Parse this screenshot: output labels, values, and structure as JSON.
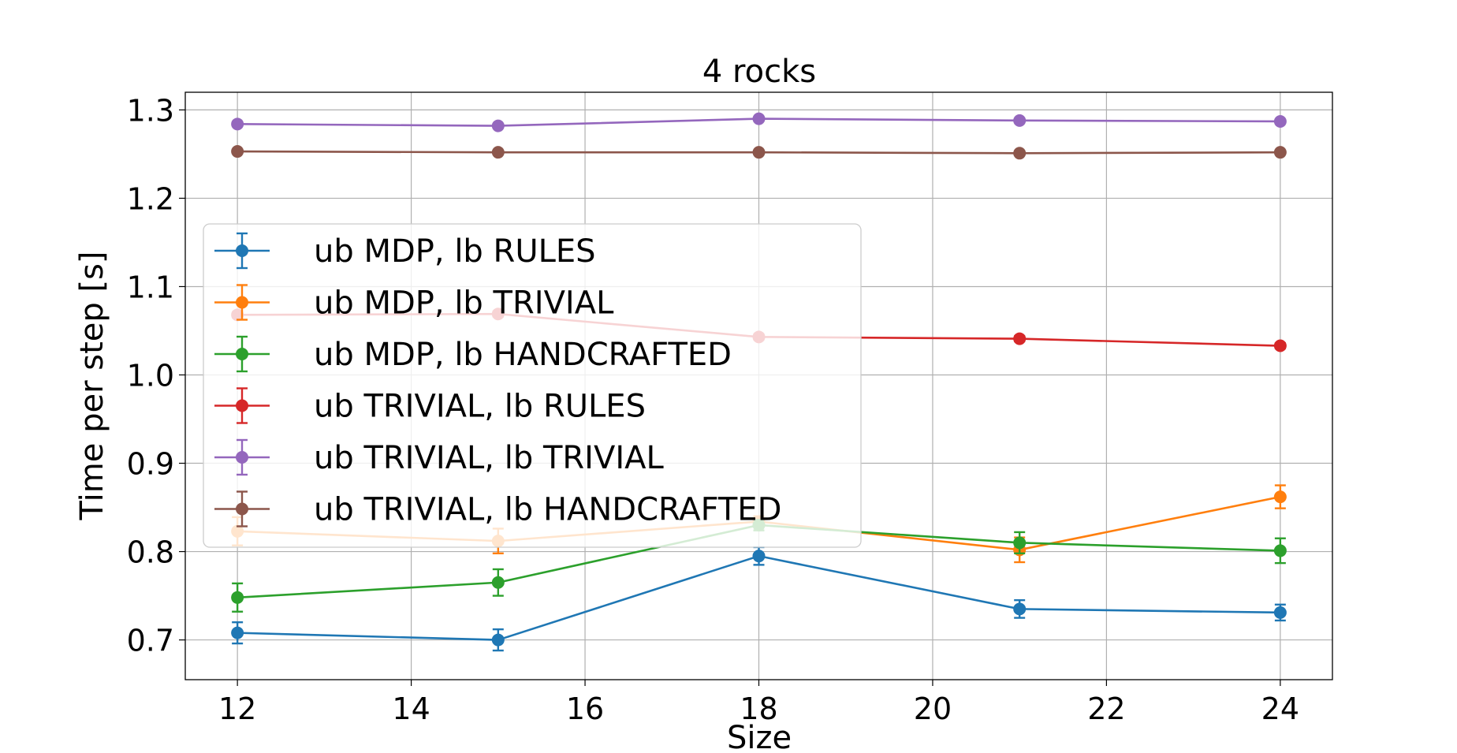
{
  "chart_data": {
    "type": "line",
    "title": "4 rocks",
    "xlabel": "Size",
    "ylabel": "Time per step [s]",
    "xlim": [
      11.4,
      24.6
    ],
    "ylim": [
      0.655,
      1.32
    ],
    "xticks": [
      12,
      14,
      16,
      18,
      20,
      22,
      24
    ],
    "yticks": [
      0.7,
      0.8,
      0.9,
      1.0,
      1.1,
      1.2,
      1.3
    ],
    "xtick_labels": [
      "12",
      "14",
      "16",
      "18",
      "20",
      "22",
      "24"
    ],
    "ytick_labels": [
      "0.7",
      "0.8",
      "0.9",
      "1.0",
      "1.1",
      "1.2",
      "1.3"
    ],
    "grid": true,
    "legend_position": "center-left",
    "x": [
      12,
      15,
      18,
      21,
      24
    ],
    "series": [
      {
        "name": "ub MDP, lb RULES",
        "color": "#1f77b4",
        "values": [
          0.708,
          0.7,
          0.795,
          0.735,
          0.731
        ],
        "errors": [
          0.012,
          0.012,
          0.01,
          0.01,
          0.009
        ]
      },
      {
        "name": "ub MDP, lb TRIVIAL",
        "color": "#ff7f0e",
        "values": [
          0.823,
          0.812,
          0.834,
          0.802,
          0.862
        ],
        "errors": [
          0.016,
          0.014,
          0.006,
          0.014,
          0.013
        ]
      },
      {
        "name": "ub MDP, lb HANDCRAFTED",
        "color": "#2ca02c",
        "values": [
          0.748,
          0.765,
          0.83,
          0.81,
          0.801
        ],
        "errors": [
          0.016,
          0.015,
          0.006,
          0.012,
          0.014
        ]
      },
      {
        "name": "ub TRIVIAL, lb RULES",
        "color": "#d62728",
        "values": [
          1.068,
          1.069,
          1.043,
          1.041,
          1.033
        ],
        "errors": [
          0.003,
          0.003,
          0.003,
          0.003,
          0.003
        ]
      },
      {
        "name": "ub TRIVIAL, lb TRIVIAL",
        "color": "#9467bd",
        "values": [
          1.284,
          1.282,
          1.29,
          1.288,
          1.287
        ],
        "errors": [
          0.002,
          0.002,
          0.002,
          0.002,
          0.002
        ]
      },
      {
        "name": "ub TRIVIAL, lb HANDCRAFTED",
        "color": "#8c564b",
        "values": [
          1.253,
          1.252,
          1.252,
          1.251,
          1.252
        ],
        "errors": [
          0.002,
          0.002,
          0.002,
          0.002,
          0.002
        ]
      }
    ]
  }
}
